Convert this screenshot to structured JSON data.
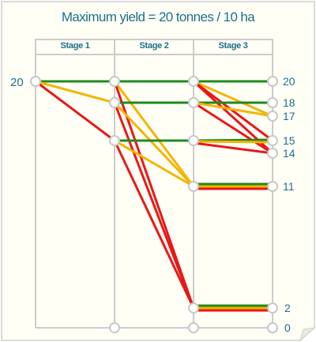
{
  "title": "Maximum yield = 20 tonnes / 10 ha",
  "stages": [
    "Stage 1",
    "Stage 2",
    "Stage 3"
  ],
  "start_value": "20",
  "end_values": [
    "20",
    "18",
    "17",
    "15",
    "14",
    "11",
    "2",
    "0"
  ],
  "colors": {
    "green": "#1f8a1f",
    "yellow": "#f5b400",
    "red": "#e81818",
    "frame": "#cccccc",
    "text": "#1d6f8a"
  }
}
